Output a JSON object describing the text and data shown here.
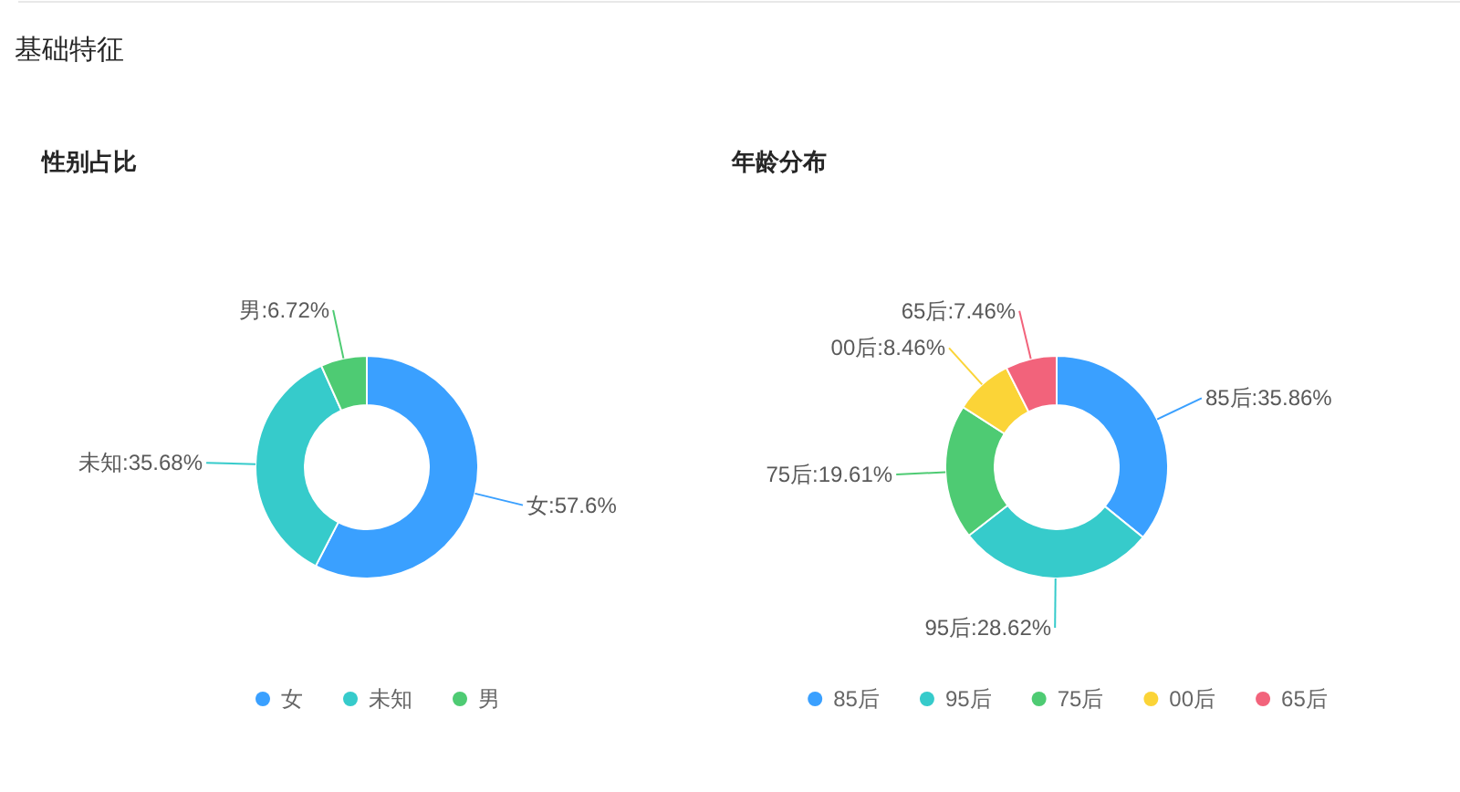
{
  "chart_data": [
    {
      "type": "other",
      "title": "基础特征"
    },
    {
      "type": "donut",
      "title": "性别占比",
      "categories": [
        "女",
        "未知",
        "男"
      ],
      "values": [
        57.6,
        35.68,
        6.72
      ],
      "colors": [
        "#3aa0ff",
        "#36cbcb",
        "#4ecb73"
      ],
      "value_labels": [
        "女:57.6%",
        "未知:35.68%",
        "男:6.72%"
      ],
      "legend": "bottom"
    },
    {
      "type": "donut",
      "title": "年龄分布",
      "categories": [
        "85后",
        "95后",
        "75后",
        "00后",
        "65后"
      ],
      "values": [
        35.86,
        28.62,
        19.61,
        8.46,
        7.46
      ],
      "colors": [
        "#3aa0ff",
        "#36cbcb",
        "#4ecb73",
        "#fbd437",
        "#f2637b"
      ],
      "value_labels": [
        "85后:35.86%",
        "95后:28.62%",
        "75后:19.61%",
        "00后:8.46%",
        "65后:7.46%"
      ],
      "legend": "bottom"
    }
  ]
}
